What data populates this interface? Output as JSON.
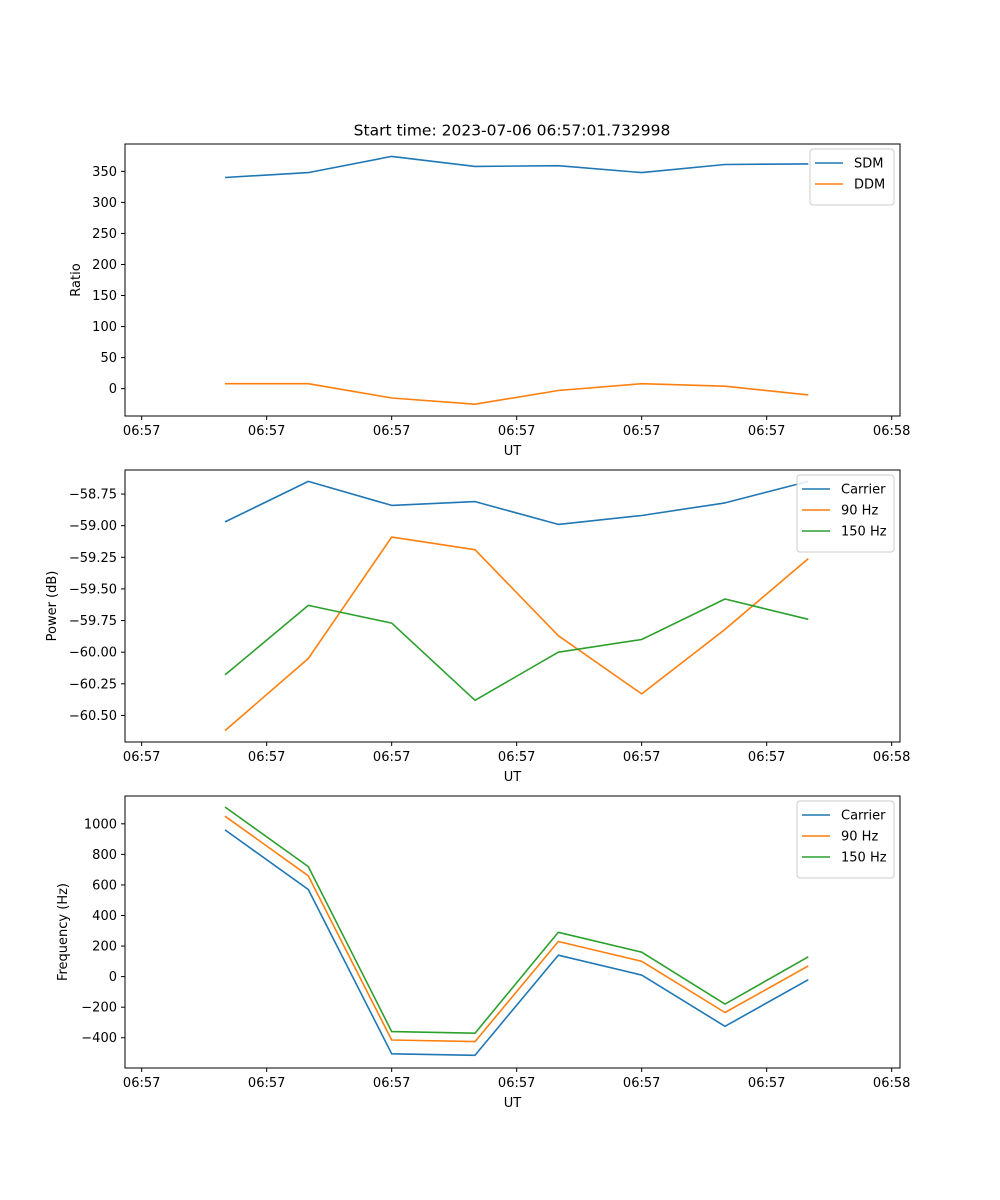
{
  "figure_title": "Start time: 2023-07-06 06:57:01.732998",
  "chart_data": [
    {
      "type": "line",
      "title": "Start time: 2023-07-06 06:57:01.732998",
      "xlabel": "UT",
      "ylabel": "Ratio",
      "x": [
        1,
        2,
        3,
        4,
        5,
        6,
        7,
        8
      ],
      "xlim": [
        -0.2,
        9.1
      ],
      "xticks": [
        0,
        1.5,
        3,
        4.5,
        6,
        7.5,
        9
      ],
      "xtick_labels": [
        "06:57",
        "06:57",
        "06:57",
        "06:57",
        "06:57",
        "06:57",
        "06:58"
      ],
      "ylim": [
        -44,
        394
      ],
      "yticks": [
        0,
        50,
        100,
        150,
        200,
        250,
        300,
        350
      ],
      "ytick_labels": [
        "0",
        "50",
        "100",
        "150",
        "200",
        "250",
        "300",
        "350"
      ],
      "legend_position": "top-right",
      "series": [
        {
          "name": "SDM",
          "color": "#1f77b4",
          "values": [
            340,
            348,
            374,
            358,
            359,
            348,
            361,
            362
          ]
        },
        {
          "name": "DDM",
          "color": "#ff7f0e",
          "values": [
            8,
            8,
            -15,
            -25,
            -3,
            8,
            4,
            -10
          ]
        }
      ]
    },
    {
      "type": "line",
      "title": "",
      "xlabel": "UT",
      "ylabel": "Power (dB)",
      "x": [
        1,
        2,
        3,
        4,
        5,
        6,
        7,
        8
      ],
      "xlim": [
        -0.2,
        9.1
      ],
      "xticks": [
        0,
        1.5,
        3,
        4.5,
        6,
        7.5,
        9
      ],
      "xtick_labels": [
        "06:57",
        "06:57",
        "06:57",
        "06:57",
        "06:57",
        "06:57",
        "06:58"
      ],
      "ylim": [
        -60.71,
        -58.56
      ],
      "yticks": [
        -60.5,
        -60.25,
        -60.0,
        -59.75,
        -59.5,
        -59.25,
        -59.0,
        -58.75
      ],
      "ytick_labels": [
        "−60.50",
        "−60.25",
        "−60.00",
        "−59.75",
        "−59.50",
        "−59.25",
        "−59.00",
        "−58.75"
      ],
      "legend_position": "top-right",
      "series": [
        {
          "name": "Carrier",
          "color": "#1f77b4",
          "values": [
            -58.97,
            -58.65,
            -58.84,
            -58.81,
            -58.99,
            -58.92,
            -58.82,
            -58.65
          ]
        },
        {
          "name": "90 Hz",
          "color": "#ff7f0e",
          "values": [
            -60.62,
            -60.05,
            -59.09,
            -59.19,
            -59.87,
            -60.33,
            -59.82,
            -59.26
          ]
        },
        {
          "name": "150 Hz",
          "color": "#2ca02c",
          "values": [
            -60.18,
            -59.63,
            -59.77,
            -60.38,
            -60.0,
            -59.9,
            -59.58,
            -59.74
          ]
        }
      ]
    },
    {
      "type": "line",
      "title": "",
      "xlabel": "UT",
      "ylabel": "Frequency (Hz)",
      "x": [
        1,
        2,
        3,
        4,
        5,
        6,
        7,
        8
      ],
      "xlim": [
        -0.2,
        9.1
      ],
      "xticks": [
        0,
        1.5,
        3,
        4.5,
        6,
        7.5,
        9
      ],
      "xtick_labels": [
        "06:57",
        "06:57",
        "06:57",
        "06:57",
        "06:57",
        "06:57",
        "06:58"
      ],
      "ylim": [
        -598,
        1182
      ],
      "yticks": [
        -400,
        -200,
        0,
        200,
        400,
        600,
        800,
        1000
      ],
      "ytick_labels": [
        "−400",
        "−200",
        "0",
        "200",
        "400",
        "600",
        "800",
        "1000"
      ],
      "legend_position": "top-right",
      "series": [
        {
          "name": "Carrier",
          "color": "#1f77b4",
          "values": [
            960,
            570,
            -505,
            -515,
            140,
            10,
            -325,
            -20
          ]
        },
        {
          "name": "90 Hz",
          "color": "#ff7f0e",
          "values": [
            1050,
            660,
            -415,
            -425,
            230,
            100,
            -235,
            70
          ]
        },
        {
          "name": "150 Hz",
          "color": "#2ca02c",
          "values": [
            1110,
            720,
            -360,
            -370,
            290,
            160,
            -180,
            130
          ]
        }
      ]
    }
  ]
}
